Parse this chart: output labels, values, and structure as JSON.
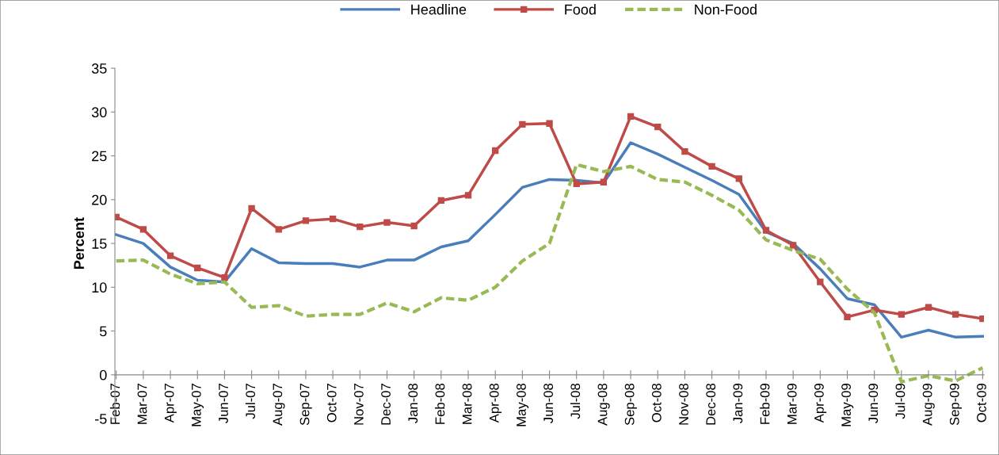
{
  "chart_data": {
    "type": "line",
    "ylabel": "Percent",
    "ylim": [
      -5,
      35
    ],
    "yticks": [
      -5,
      0,
      5,
      10,
      15,
      20,
      25,
      30,
      35
    ],
    "grid": false,
    "legend": "top",
    "categories": [
      "Feb-07",
      "Mar-07",
      "Apr-07",
      "May-07",
      "Jun-07",
      "Jul-07",
      "Aug-07",
      "Sep-07",
      "Oct-07",
      "Nov-07",
      "Dec-07",
      "Jan-08",
      "Feb-08",
      "Mar-08",
      "Apr-08",
      "May-08",
      "Jun-08",
      "Jul-08",
      "Aug-08",
      "Sep-08",
      "Oct-08",
      "Nov-08",
      "Dec-08",
      "Jan-09",
      "Feb-09",
      "Mar-09",
      "Apr-09",
      "May-09",
      "Jun-09",
      "Jul-09",
      "Aug-09",
      "Sep-09",
      "Oct-09"
    ],
    "series": [
      {
        "name": "Headline",
        "color": "#4a7ebb",
        "marker": "none",
        "line_style": "solid",
        "values": [
          16,
          15,
          12.3,
          10.8,
          10.6,
          14.4,
          12.8,
          12.7,
          12.7,
          12.3,
          13.1,
          13.1,
          14.6,
          15.3,
          18.3,
          21.4,
          22.3,
          22.2,
          21.9,
          26.5,
          25.2,
          23.7,
          22.2,
          20.6,
          16.3,
          15,
          12.1,
          8.7,
          8,
          4.3,
          5.1,
          4.3,
          4.4
        ]
      },
      {
        "name": "Food",
        "color": "#be4b48",
        "marker": "square",
        "line_style": "solid",
        "values": [
          18,
          16.6,
          13.6,
          12.2,
          11.1,
          19,
          16.6,
          17.6,
          17.8,
          16.9,
          17.4,
          17,
          19.9,
          20.5,
          25.6,
          28.6,
          28.7,
          21.8,
          22,
          29.5,
          28.3,
          25.5,
          23.8,
          22.4,
          16.5,
          14.8,
          10.6,
          6.6,
          7.4,
          6.9,
          7.7,
          6.9,
          6.4
        ]
      },
      {
        "name": "Non-Food",
        "color": "#98b954",
        "marker": "none",
        "line_style": "dashed",
        "values": [
          13,
          13.1,
          11.5,
          10.4,
          10.6,
          7.7,
          7.9,
          6.7,
          6.9,
          6.9,
          8.2,
          7.2,
          8.8,
          8.5,
          10,
          13,
          15,
          24,
          23.2,
          23.8,
          22.3,
          22,
          20.5,
          18.8,
          15.4,
          14.2,
          13.2,
          9.8,
          7.1,
          -0.8,
          -0.1,
          -0.7,
          0.8
        ]
      }
    ]
  }
}
